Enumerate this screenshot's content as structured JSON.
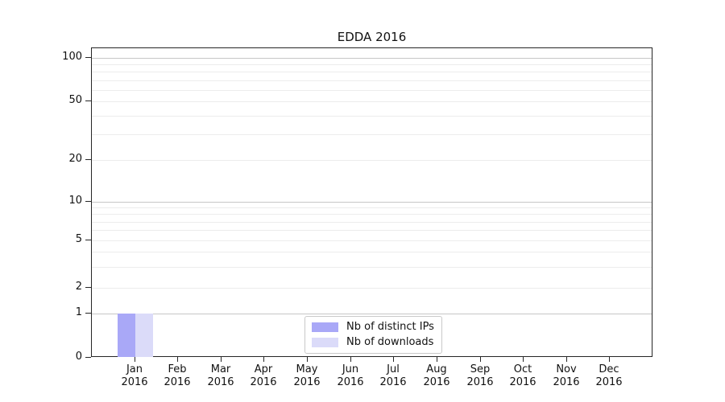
{
  "figure": {
    "kind": "matplotlib-style bar chart",
    "background": "#ffffff"
  },
  "chart_data": {
    "type": "bar",
    "title": "EDDA 2016",
    "xlabel": "",
    "ylabel": "",
    "x_axis": {
      "categories": [
        {
          "month": "Jan",
          "year": "2016"
        },
        {
          "month": "Feb",
          "year": "2016"
        },
        {
          "month": "Mar",
          "year": "2016"
        },
        {
          "month": "Apr",
          "year": "2016"
        },
        {
          "month": "May",
          "year": "2016"
        },
        {
          "month": "Jun",
          "year": "2016"
        },
        {
          "month": "Jul",
          "year": "2016"
        },
        {
          "month": "Aug",
          "year": "2016"
        },
        {
          "month": "Sep",
          "year": "2016"
        },
        {
          "month": "Oct",
          "year": "2016"
        },
        {
          "month": "Nov",
          "year": "2016"
        },
        {
          "month": "Dec",
          "year": "2016"
        }
      ]
    },
    "y_axis": {
      "scale": "symlog",
      "ylim": [
        0,
        117
      ],
      "ticks": [
        {
          "value": 100,
          "label": "100",
          "major": true
        },
        {
          "value": 50,
          "label": "50",
          "major": false
        },
        {
          "value": 20,
          "label": "20",
          "major": false
        },
        {
          "value": 10,
          "label": "10",
          "major": true
        },
        {
          "value": 5,
          "label": "5",
          "major": false
        },
        {
          "value": 2,
          "label": "2",
          "major": false
        },
        {
          "value": 1,
          "label": "1",
          "major": true
        },
        {
          "value": 0,
          "label": "0",
          "major": false
        }
      ],
      "minor_gridline_values": [
        3,
        4,
        6,
        7,
        8,
        9,
        30,
        40,
        60,
        70,
        80,
        90
      ]
    },
    "series": [
      {
        "name": "Nb of distinct IPs",
        "color": "#a9a8f7",
        "values": [
          1,
          0,
          0,
          0,
          0,
          0,
          0,
          0,
          0,
          0,
          0,
          0
        ]
      },
      {
        "name": "Nb of downloads",
        "color": "#dbdbf9",
        "values": [
          1,
          0,
          0,
          0,
          0,
          0,
          0,
          0,
          0,
          0,
          0,
          0
        ]
      }
    ],
    "legend": {
      "position": "lower center"
    },
    "grid": "horizontal only"
  },
  "colors": {
    "major_grid": "#c6c6c6",
    "minor_grid": "#ececec",
    "spine": "#262626",
    "text": "#111111",
    "legend_border": "#c9c9c9"
  }
}
